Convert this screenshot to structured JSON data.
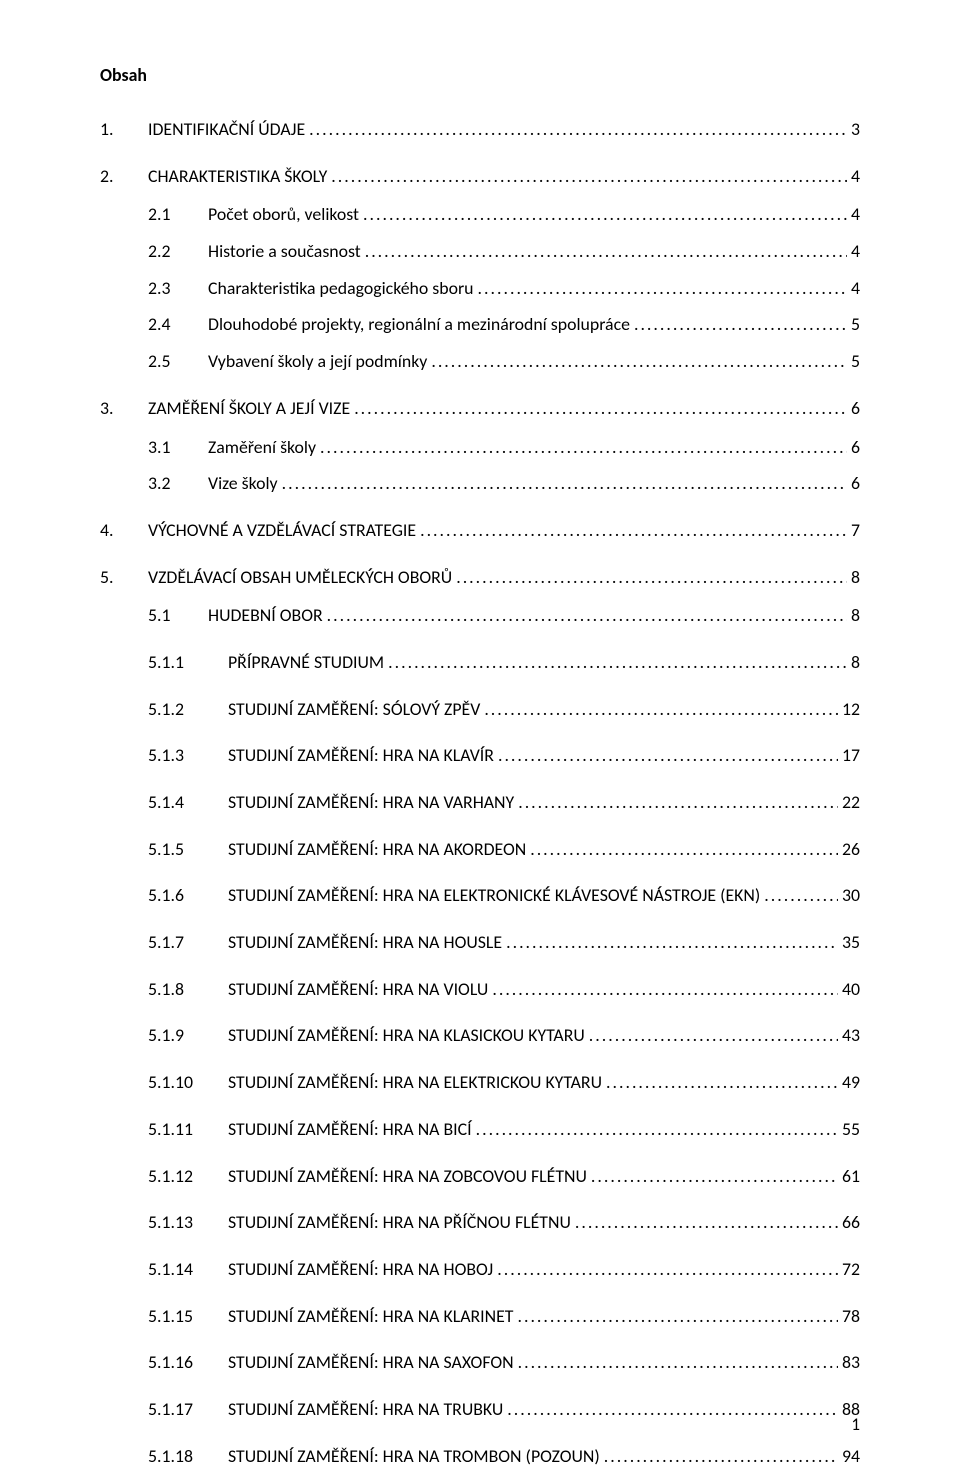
{
  "title": "Obsah",
  "page_number": "1",
  "dot_fill": "................................................................................................................................................................................................................",
  "toc": [
    {
      "level": 1,
      "num": "1.",
      "label": "IDENTIFIKAČNÍ ÚDAJE",
      "page": "3"
    },
    {
      "level": 1,
      "num": "2.",
      "label": "CHARAKTERISTIKA ŠKOLY",
      "page": "4"
    },
    {
      "level": 2,
      "num": "2.1",
      "label": "Počet oborů, velikost",
      "page": "4"
    },
    {
      "level": 2,
      "num": "2.2",
      "label": "Historie a současnost",
      "page": "4"
    },
    {
      "level": 2,
      "num": "2.3",
      "label": "Charakteristika pedagogického sboru",
      "page": "4"
    },
    {
      "level": 2,
      "num": "2.4",
      "label": "Dlouhodobé projekty, regionální a mezinárodní spolupráce",
      "page": "5"
    },
    {
      "level": 2,
      "num": "2.5",
      "label": "Vybavení školy a její podmínky",
      "page": "5"
    },
    {
      "level": 1,
      "num": "3.",
      "label": "ZAMĚŘENÍ ŠKOLY A JEJÍ VIZE",
      "page": "6"
    },
    {
      "level": 2,
      "num": "3.1",
      "label": "Zaměření školy",
      "page": "6"
    },
    {
      "level": 2,
      "num": "3.2",
      "label": "Vize školy",
      "page": "6"
    },
    {
      "level": 1,
      "num": "4.",
      "label": "VÝCHOVNÉ A VZDĚLÁVACÍ STRATEGIE",
      "page": "7"
    },
    {
      "level": 1,
      "num": "5.",
      "label": "VZDĚLÁVACÍ OBSAH UMĚLECKÝCH OBORŮ",
      "page": "8"
    },
    {
      "level": 2,
      "num": "5.1",
      "label": "HUDEBNÍ OBOR",
      "page": "8"
    },
    {
      "level": 3,
      "num": "5.1.1",
      "label": "PŘÍPRAVNÉ STUDIUM",
      "page": "8"
    },
    {
      "level": 3,
      "num": "5.1.2",
      "label": "STUDIJNÍ ZAMĚŘENÍ: SÓLOVÝ ZPĚV",
      "page": "12"
    },
    {
      "level": 3,
      "num": "5.1.3",
      "label": "STUDIJNÍ ZAMĚŘENÍ: HRA NA KLAVÍR",
      "page": "17"
    },
    {
      "level": 3,
      "num": "5.1.4",
      "label": "STUDIJNÍ ZAMĚŘENÍ: HRA NA VARHANY",
      "page": "22"
    },
    {
      "level": 3,
      "num": "5.1.5",
      "label": "STUDIJNÍ ZAMĚŘENÍ: HRA NA AKORDEON",
      "page": "26"
    },
    {
      "level": 3,
      "num": "5.1.6",
      "label": "STUDIJNÍ ZAMĚŘENÍ: HRA NA ELEKTRONICKÉ KLÁVESOVÉ NÁSTROJE (EKN)",
      "page": "30"
    },
    {
      "level": 3,
      "num": "5.1.7",
      "label": "STUDIJNÍ ZAMĚŘENÍ: HRA NA HOUSLE",
      "page": "35"
    },
    {
      "level": 3,
      "num": "5.1.8",
      "label": "STUDIJNÍ ZAMĚŘENÍ: HRA NA VIOLU",
      "page": "40"
    },
    {
      "level": 3,
      "num": "5.1.9",
      "label": "STUDIJNÍ ZAMĚŘENÍ: HRA NA KLASICKOU KYTARU",
      "page": "43"
    },
    {
      "level": 3,
      "num": "5.1.10",
      "label": "STUDIJNÍ ZAMĚŘENÍ: HRA NA ELEKTRICKOU KYTARU",
      "page": "49"
    },
    {
      "level": 3,
      "num": "5.1.11",
      "label": "STUDIJNÍ ZAMĚŘENÍ: HRA NA BICÍ",
      "page": "55"
    },
    {
      "level": 3,
      "num": "5.1.12",
      "label": "STUDIJNÍ ZAMĚŘENÍ: HRA NA ZOBCOVOU FLÉTNU",
      "page": "61"
    },
    {
      "level": 3,
      "num": "5.1.13",
      "label": "STUDIJNÍ ZAMĚŘENÍ: HRA NA PŘÍČNOU FLÉTNU",
      "page": "66"
    },
    {
      "level": 3,
      "num": "5.1.14",
      "label": "STUDIJNÍ ZAMĚŘENÍ: HRA NA HOBOJ",
      "page": "72"
    },
    {
      "level": 3,
      "num": "5.1.15",
      "label": "STUDIJNÍ ZAMĚŘENÍ: HRA NA KLARINET",
      "page": "78"
    },
    {
      "level": 3,
      "num": "5.1.16",
      "label": "STUDIJNÍ ZAMĚŘENÍ: HRA NA SAXOFON",
      "page": "83"
    },
    {
      "level": 3,
      "num": "5.1.17",
      "label": "STUDIJNÍ ZAMĚŘENÍ: HRA NA TRUBKU",
      "page": "88"
    },
    {
      "level": 3,
      "num": "5.1.18",
      "label": "STUDIJNÍ ZAMĚŘENÍ: HRA NA TROMBON (POZOUN)",
      "page": "94"
    }
  ]
}
